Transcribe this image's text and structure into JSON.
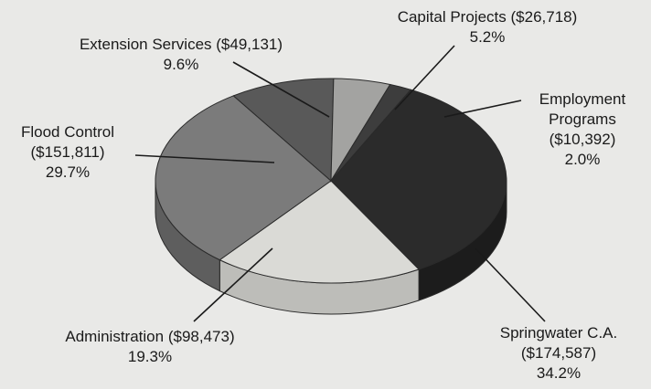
{
  "chart_data": {
    "type": "pie",
    "title": "",
    "slices": [
      {
        "label": "Springwater C.A.",
        "amount": "($174,587)",
        "value": 174587,
        "percent": "34.2%",
        "color": "#2b2b2b",
        "side_color": "#1c1c1c"
      },
      {
        "label": "Administration",
        "amount": "($98,473)",
        "value": 98473,
        "percent": "19.3%",
        "color": "#dadad6",
        "side_color": "#bdbdb9"
      },
      {
        "label": "Flood Control",
        "amount": "($151,811)",
        "value": 151811,
        "percent": "29.7%",
        "color": "#7b7b7b",
        "side_color": "#5e5e5e"
      },
      {
        "label": "Extension Services",
        "amount": "($49,131)",
        "value": 49131,
        "percent": "9.6%",
        "color": "#595959",
        "side_color": "#444444"
      },
      {
        "label": "Capital Projects",
        "amount": "($26,718)",
        "value": 26718,
        "percent": "5.2%",
        "color": "#a3a3a1",
        "side_color": "#858583"
      },
      {
        "label": "Employment Programs",
        "amount": "($10,392)",
        "value": 10392,
        "percent": "2.0%",
        "color": "#3d3d3d",
        "side_color": "#2a2a2a"
      }
    ]
  }
}
